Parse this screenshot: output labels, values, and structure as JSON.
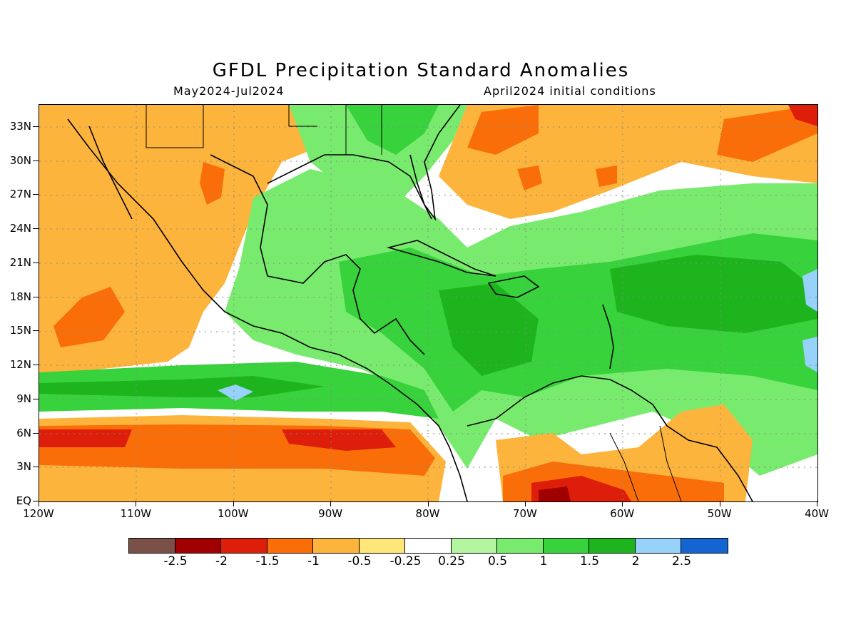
{
  "title": "GFDL Precipitation Standard Anomalies",
  "subtitle_left": "May2024-Jul2024",
  "subtitle_right": "April2024 initial conditions",
  "y_axis_labels": [
    "33N",
    "30N",
    "27N",
    "24N",
    "21N",
    "18N",
    "15N",
    "12N",
    "9N",
    "6N",
    "3N",
    "EQ"
  ],
  "x_axis_labels": [
    "120W",
    "110W",
    "100W",
    "90W",
    "80W",
    "70W",
    "60W",
    "50W",
    "40W"
  ],
  "colorbar": {
    "colors": [
      "#7a5048",
      "#a00000",
      "#dc1e0a",
      "#fa6e0a",
      "#fcb43c",
      "#ffe678",
      "#ffffff",
      "#b4f5a0",
      "#78eb6e",
      "#37d23c",
      "#1eb41e",
      "#96d2fa",
      "#1464d2"
    ],
    "labels": [
      "-2.5",
      "-2",
      "-1.5",
      "-1",
      "-0.5",
      "-0.25",
      "0.25",
      "0.5",
      "1",
      "1.5",
      "2",
      "2.5"
    ]
  },
  "map": {
    "lat_range": [
      0,
      35
    ],
    "lon_range": [
      -120,
      -40
    ],
    "grid": true
  }
}
